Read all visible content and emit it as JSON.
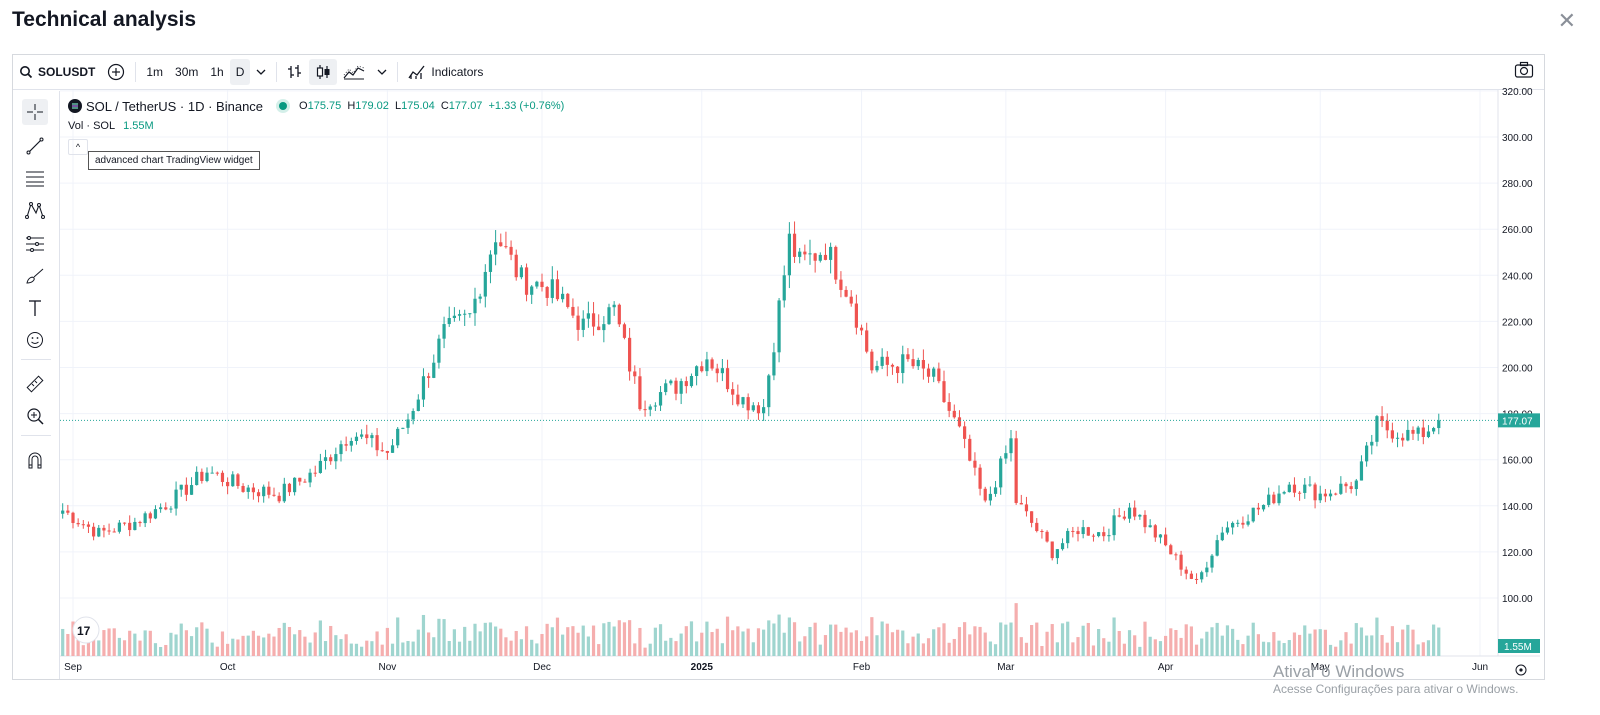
{
  "page": {
    "title": "Technical analysis",
    "close_icon": "close-icon"
  },
  "toolbar": {
    "symbol": "SOLUSDT",
    "intervals": [
      "1m",
      "30m",
      "1h",
      "D"
    ],
    "active_interval": "D",
    "indicators_label": "Indicators"
  },
  "legend": {
    "title": "SOL / TetherUS · 1D · Binance",
    "open_label": "O",
    "open": "175.75",
    "high_label": "H",
    "high": "179.02",
    "low_label": "L",
    "low": "175.04",
    "close_label": "C",
    "close": "177.07",
    "change": "+1.33 (+0.76%)",
    "vol_label": "Vol · SOL",
    "vol_value": "1.55M"
  },
  "tooltip": "advanced chart TradingView widget",
  "watermark": {
    "line1": "Ativar o Windows",
    "line2": "Acesse Configurações para ativar o Windows."
  },
  "colors": {
    "up": "#26a69a",
    "down": "#ef5350",
    "vol_up": "#9fd5cf",
    "vol_down": "#f5aeae",
    "price_line": "#26a69a"
  },
  "chart_data": {
    "type": "candlestick",
    "title": "SOL / TetherUS · 1D · Binance",
    "y_ticks": [
      "100.00",
      "120.00",
      "140.00",
      "160.00",
      "180.00",
      "200.00",
      "220.00",
      "240.00",
      "260.00",
      "280.00",
      "300.00",
      "320.00"
    ],
    "ylim": [
      80,
      322
    ],
    "x_labels": [
      {
        "label": "Sep",
        "date": "2024-09-01"
      },
      {
        "label": "Oct",
        "date": "2024-10-01"
      },
      {
        "label": "Nov",
        "date": "2024-11-01"
      },
      {
        "label": "Dec",
        "date": "2024-12-01"
      },
      {
        "label": "2025",
        "date": "2025-01-01"
      },
      {
        "label": "Feb",
        "date": "2025-02-01"
      },
      {
        "label": "Mar",
        "date": "2025-03-01"
      },
      {
        "label": "Apr",
        "date": "2025-04-01"
      },
      {
        "label": "May",
        "date": "2025-05-01"
      },
      {
        "label": "Jun",
        "date": "2025-06-01"
      }
    ],
    "last_price": "177.07",
    "last_volume": "1.55M",
    "close_path": [
      [
        "2024-08-30",
        138
      ],
      [
        "2024-09-06",
        128
      ],
      [
        "2024-09-13",
        133
      ],
      [
        "2024-09-20",
        142
      ],
      [
        "2024-09-27",
        155
      ],
      [
        "2024-10-04",
        148
      ],
      [
        "2024-10-11",
        145
      ],
      [
        "2024-10-18",
        155
      ],
      [
        "2024-10-25",
        172
      ],
      [
        "2024-11-01",
        163
      ],
      [
        "2024-11-05",
        178
      ],
      [
        "2024-11-12",
        215
      ],
      [
        "2024-11-17",
        222
      ],
      [
        "2024-11-22",
        258
      ],
      [
        "2024-11-27",
        238
      ],
      [
        "2024-12-02",
        235
      ],
      [
        "2024-12-09",
        218
      ],
      [
        "2024-12-15",
        225
      ],
      [
        "2024-12-20",
        185
      ],
      [
        "2024-12-27",
        192
      ],
      [
        "2025-01-02",
        205
      ],
      [
        "2025-01-09",
        186
      ],
      [
        "2025-01-13",
        183
      ],
      [
        "2025-01-18",
        255
      ],
      [
        "2025-01-20",
        245
      ],
      [
        "2025-01-25",
        252
      ],
      [
        "2025-01-30",
        230
      ],
      [
        "2025-02-03",
        200
      ],
      [
        "2025-02-10",
        202
      ],
      [
        "2025-02-15",
        195
      ],
      [
        "2025-02-20",
        172
      ],
      [
        "2025-02-25",
        140
      ],
      [
        "2025-03-02",
        168
      ],
      [
        "2025-03-03",
        142
      ],
      [
        "2025-03-10",
        120
      ],
      [
        "2025-03-15",
        130
      ],
      [
        "2025-03-20",
        128
      ],
      [
        "2025-03-25",
        140
      ],
      [
        "2025-03-31",
        125
      ],
      [
        "2025-04-07",
        106
      ],
      [
        "2025-04-12",
        130
      ],
      [
        "2025-04-20",
        140
      ],
      [
        "2025-04-25",
        150
      ],
      [
        "2025-05-01",
        145
      ],
      [
        "2025-05-08",
        150
      ],
      [
        "2025-05-12",
        175
      ],
      [
        "2025-05-16",
        172
      ],
      [
        "2025-05-20",
        170
      ],
      [
        "2025-05-24",
        177.07
      ]
    ]
  }
}
